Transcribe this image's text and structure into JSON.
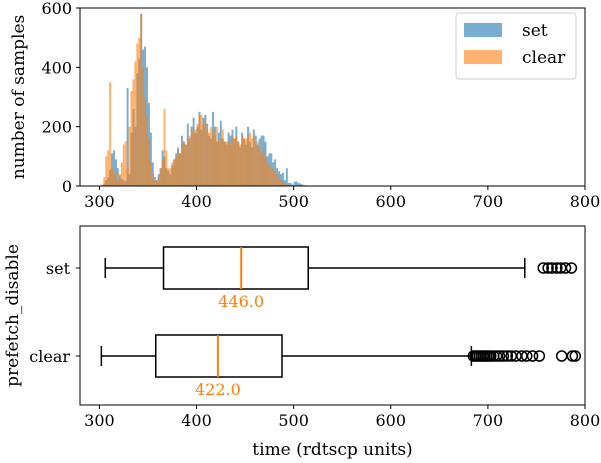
{
  "chart_data": [
    {
      "type": "histogram",
      "xlabel": "",
      "ylabel": "number of samples",
      "xlim": [
        280,
        800
      ],
      "ylim": [
        0,
        600
      ],
      "x_ticks": [
        300,
        400,
        500,
        600,
        700,
        800
      ],
      "y_ticks": [
        0,
        200,
        400,
        600
      ],
      "legend": {
        "placement": "top-right",
        "entries": [
          "set",
          "clear"
        ]
      },
      "bin_width": 2,
      "bin_start": 300,
      "series": [
        {
          "name": "set",
          "color": "#1f77b4",
          "alpha": 0.6,
          "values": [
            0,
            3,
            8,
            20,
            30,
            55,
            110,
            120,
            90,
            60,
            35,
            25,
            20,
            15,
            330,
            40,
            180,
            260,
            200,
            380,
            430,
            580,
            460,
            470,
            400,
            280,
            180,
            80,
            30,
            20,
            40,
            60,
            120,
            100,
            60,
            50,
            40,
            70,
            90,
            110,
            130,
            110,
            170,
            150,
            140,
            210,
            160,
            200,
            230,
            180,
            200,
            250,
            190,
            230,
            240,
            210,
            170,
            160,
            250,
            200,
            150,
            180,
            220,
            160,
            150,
            140,
            180,
            170,
            190,
            160,
            200,
            150,
            130,
            180,
            160,
            140,
            200,
            150,
            130,
            190,
            170,
            140,
            160,
            170,
            170,
            150,
            100,
            110,
            110,
            80,
            90,
            60,
            50,
            40,
            45,
            20,
            60,
            10,
            10,
            5,
            15,
            15,
            10,
            8,
            5,
            3,
            2,
            1,
            0,
            0,
            0,
            0,
            0,
            0,
            0,
            0,
            0,
            0,
            0,
            0,
            0,
            0,
            0,
            0,
            0,
            0,
            0,
            0,
            0,
            0,
            0,
            0,
            0,
            0,
            0,
            0,
            0,
            0,
            0,
            0,
            0,
            0,
            0,
            0,
            0,
            0,
            0,
            0,
            0,
            0,
            0,
            0,
            0,
            0,
            0,
            0,
            0,
            0,
            0,
            0,
            0,
            0,
            0,
            0,
            0,
            0,
            0,
            0,
            0,
            0,
            0,
            0,
            0,
            0,
            0,
            0,
            0,
            0,
            0,
            0,
            0,
            0,
            0,
            0,
            0,
            0,
            0,
            0,
            0,
            0,
            0,
            0,
            0,
            0,
            0,
            0,
            0,
            0,
            0,
            0,
            0,
            0,
            0,
            0,
            0,
            0,
            0,
            0,
            0,
            0,
            0,
            0,
            0,
            0,
            0,
            0,
            0,
            0,
            0,
            0,
            0,
            0,
            0,
            0,
            0,
            0,
            0,
            0,
            0,
            0,
            0,
            0,
            0,
            0,
            0,
            0,
            0,
            0,
            0,
            0,
            0,
            0,
            0,
            0
          ]
        },
        {
          "name": "clear",
          "color": "#ff7f0e",
          "alpha": 0.6,
          "values": [
            0,
            5,
            30,
            100,
            120,
            350,
            60,
            40,
            50,
            20,
            40,
            80,
            140,
            150,
            60,
            200,
            320,
            360,
            420,
            480,
            500,
            580,
            400,
            300,
            240,
            160,
            80,
            40,
            20,
            15,
            30,
            60,
            90,
            260,
            120,
            60,
            60,
            80,
            90,
            100,
            120,
            110,
            140,
            150,
            140,
            160,
            170,
            200,
            180,
            190,
            210,
            240,
            240,
            210,
            220,
            190,
            180,
            200,
            190,
            170,
            200,
            150,
            160,
            190,
            150,
            150,
            150,
            140,
            170,
            160,
            170,
            150,
            140,
            170,
            160,
            160,
            170,
            180,
            160,
            170,
            140,
            150,
            130,
            110,
            120,
            100,
            80,
            70,
            60,
            60,
            50,
            40,
            30,
            20,
            15,
            10,
            5,
            5,
            3,
            2,
            1,
            0,
            0,
            0,
            0,
            0,
            0,
            0,
            0,
            0,
            0,
            0,
            0,
            0,
            0,
            0,
            0,
            0,
            0,
            0,
            0,
            0,
            0,
            0,
            0,
            0,
            0,
            0,
            0,
            0,
            0,
            0,
            0,
            0,
            0,
            0,
            0,
            0,
            0,
            0,
            0,
            0,
            0,
            0,
            0,
            0,
            0,
            0,
            0,
            0,
            0,
            0,
            0,
            0,
            0,
            0,
            0,
            0,
            0,
            0,
            0,
            0,
            0,
            0,
            0,
            0,
            0,
            0,
            0,
            0,
            0,
            0,
            0,
            0,
            0,
            0,
            0,
            0,
            0,
            0,
            0,
            0,
            0,
            0,
            0,
            0,
            0,
            0,
            0,
            0,
            0,
            0,
            0,
            0,
            0,
            0,
            0,
            0,
            0,
            0,
            0,
            0,
            0,
            0,
            0,
            0,
            0,
            0,
            0,
            0,
            0,
            0,
            0,
            0,
            0,
            0,
            0,
            0,
            0,
            0,
            0,
            0,
            0,
            0,
            0,
            0,
            0,
            0,
            0,
            0,
            0,
            0,
            0,
            0,
            0,
            0,
            0,
            0,
            0,
            0,
            0,
            0,
            0,
            0,
            0,
            0,
            0,
            0,
            0
          ]
        }
      ]
    },
    {
      "type": "boxplot",
      "orientation": "horizontal",
      "xlabel": "time (rdtscp units)",
      "ylabel": "prefetch_disable",
      "xlim": [
        280,
        800
      ],
      "x_ticks": [
        300,
        400,
        500,
        600,
        700,
        800
      ],
      "categories": [
        "set",
        "clear"
      ],
      "boxes": [
        {
          "name": "set",
          "whisker_low": 306,
          "q1": 366,
          "median": 446,
          "q3": 515,
          "whisker_high": 738,
          "median_label": "446.0",
          "outliers": [
            757,
            762,
            766,
            771,
            775,
            780,
            786
          ]
        },
        {
          "name": "clear",
          "whisker_low": 302,
          "q1": 358,
          "median": 422,
          "q3": 488,
          "whisker_high": 683,
          "median_label": "422.0",
          "outliers": [
            685,
            687,
            689,
            691,
            693,
            695,
            697,
            699,
            701,
            703,
            706,
            709,
            712,
            716,
            720,
            724,
            729,
            735,
            740,
            746,
            753,
            776,
            787,
            790
          ]
        }
      ],
      "median_color": "#ff7f0e"
    }
  ]
}
